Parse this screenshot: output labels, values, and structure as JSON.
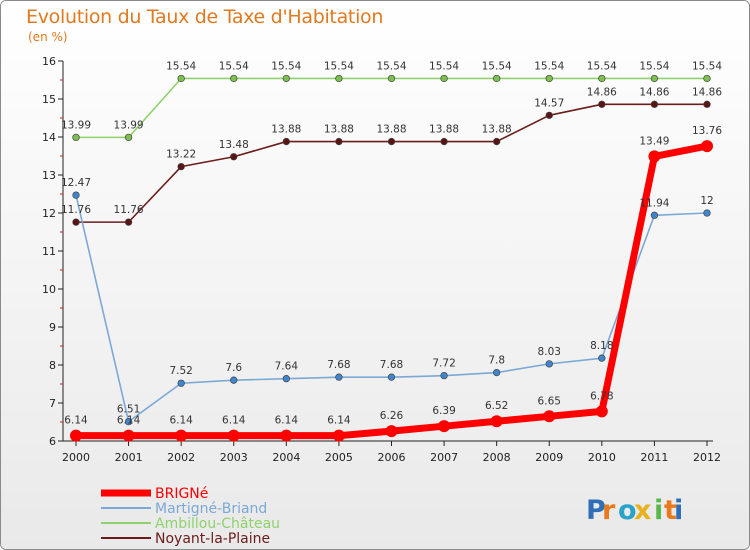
{
  "chart_data": {
    "type": "line",
    "title": "Evolution du Taux de Taxe d'Habitation",
    "ylabel": "(en %)",
    "xlabel": "",
    "ylim": [
      6,
      16
    ],
    "yticks": [
      6,
      7,
      8,
      9,
      10,
      11,
      12,
      13,
      14,
      15,
      16
    ],
    "x": [
      "2000",
      "2001",
      "2002",
      "2003",
      "2004",
      "2005",
      "2006",
      "2007",
      "2008",
      "2009",
      "2010",
      "2011",
      "2012"
    ],
    "grid": false,
    "legend_position": "bottom-left",
    "series": [
      {
        "name": "Noyant-la-Plaine",
        "color": "#6b1d1d",
        "fill": "#5a1414",
        "values": [
          11.76,
          11.76,
          13.22,
          13.48,
          13.88,
          13.88,
          13.88,
          13.88,
          13.88,
          14.57,
          14.86,
          14.86,
          14.86
        ],
        "labels": [
          "11.76",
          "11.76",
          "13.22",
          "13.48",
          "13.88",
          "13.88",
          "13.88",
          "13.88",
          "13.88",
          "14.57",
          "14.86",
          "14.86",
          "14.86"
        ]
      },
      {
        "name": "Ambillou-Château",
        "color": "#8fd16b",
        "fill": "#7cc04f",
        "values": [
          13.99,
          13.99,
          15.54,
          15.54,
          15.54,
          15.54,
          15.54,
          15.54,
          15.54,
          15.54,
          15.54,
          15.54,
          15.54
        ],
        "labels": [
          "13.99",
          "13.99",
          "15.54",
          "15.54",
          "15.54",
          "15.54",
          "15.54",
          "15.54",
          "15.54",
          "15.54",
          "15.54",
          "15.54",
          "15.54"
        ]
      },
      {
        "name": "Martigné-Briand",
        "color": "#7ba9d6",
        "fill": "#3f86cc",
        "values": [
          12.47,
          6.51,
          7.52,
          7.6,
          7.64,
          7.68,
          7.68,
          7.72,
          7.8,
          8.03,
          8.18,
          11.94,
          12
        ],
        "labels": [
          "12.47",
          "6.51",
          "7.52",
          "7.6",
          "7.64",
          "7.68",
          "7.68",
          "7.72",
          "7.8",
          "8.03",
          "8.18",
          "11.94",
          "12"
        ]
      },
      {
        "name": "BRIGNé",
        "color": "#ff0000",
        "fill": "#ff0000",
        "values": [
          6.14,
          6.14,
          6.14,
          6.14,
          6.14,
          6.14,
          6.26,
          6.39,
          6.52,
          6.65,
          6.78,
          13.49,
          13.76
        ],
        "labels": [
          "6.14",
          "6.14",
          "6.14",
          "6.14",
          "6.14",
          "6.14",
          "6.26",
          "6.39",
          "6.52",
          "6.65",
          "6.78",
          "13.49",
          "13.76"
        ]
      }
    ],
    "legend_order": [
      "BRIGNé",
      "Martigné-Briand",
      "Ambillou-Château",
      "Noyant-la-Plaine"
    ]
  },
  "brand": {
    "letters": [
      "P",
      "r",
      "o",
      "x",
      "i",
      "t",
      "i"
    ],
    "colors": [
      "#2f6fb5",
      "#e87a1d",
      "#2aa3c9",
      "#e8b11d",
      "#5bb84a",
      "#e87a1d",
      "#2f6fb5"
    ]
  }
}
